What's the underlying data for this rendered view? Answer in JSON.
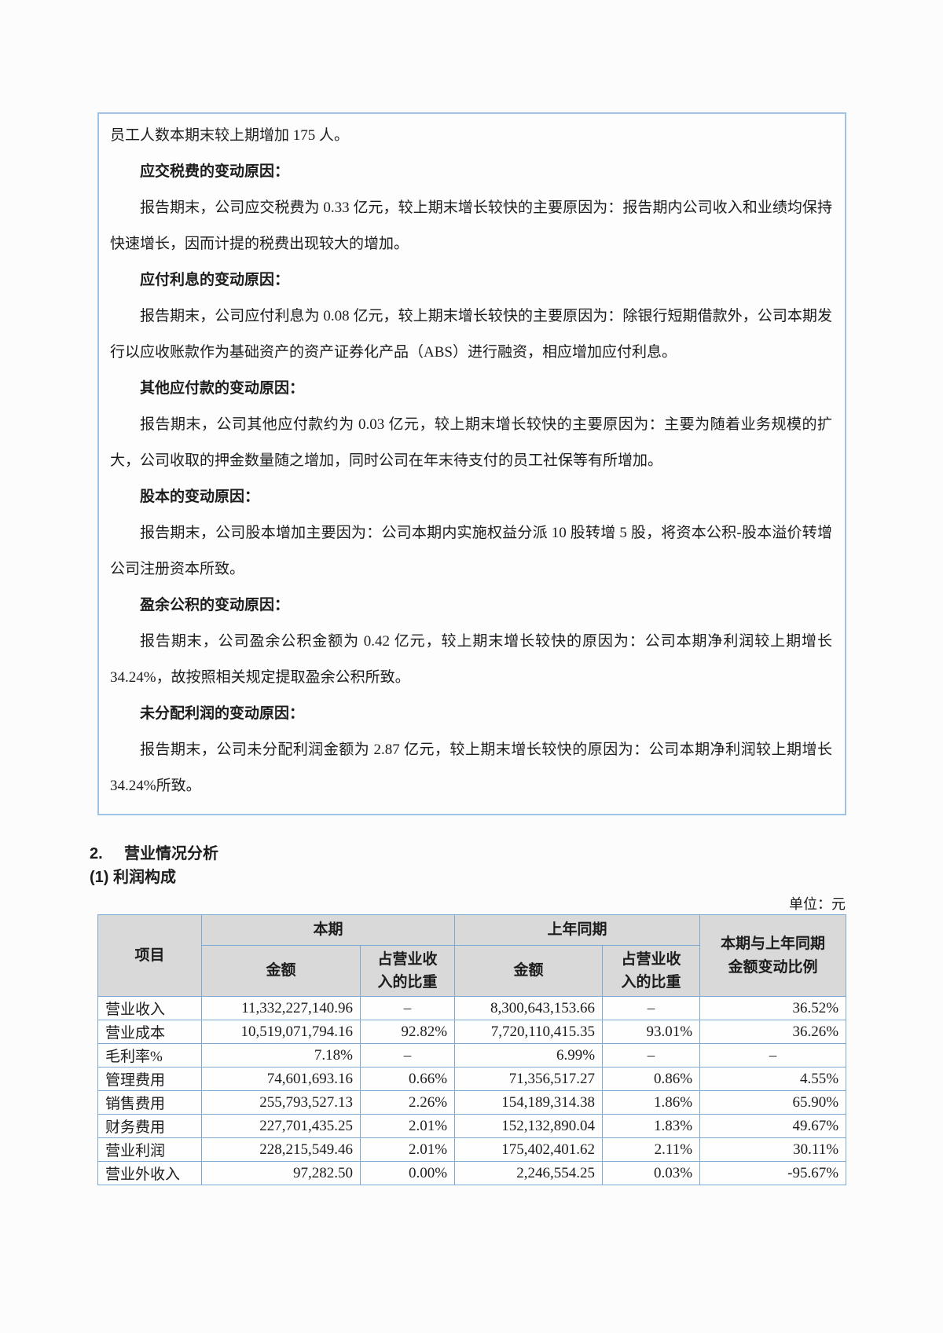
{
  "box": {
    "paragraphs": [
      {
        "style": "plain",
        "text": "员工人数本期末较上期增加 175 人。"
      },
      {
        "style": "heading",
        "text": "应交税费的变动原因："
      },
      {
        "style": "indent",
        "text": "报告期末，公司应交税费为 0.33 亿元，较上期末增长较快的主要原因为：报告期内公司收入和业绩均保持快速增长，因而计提的税费出现较大的增加。"
      },
      {
        "style": "heading",
        "text": "应付利息的变动原因："
      },
      {
        "style": "indent",
        "text": "报告期末，公司应付利息为 0.08 亿元，较上期末增长较快的主要原因为：除银行短期借款外，公司本期发行以应收账款作为基础资产的资产证券化产品（ABS）进行融资，相应增加应付利息。"
      },
      {
        "style": "heading",
        "text": "其他应付款的变动原因："
      },
      {
        "style": "indent",
        "text": "报告期末，公司其他应付款约为 0.03 亿元，较上期末增长较快的主要原因为：主要为随着业务规模的扩大，公司收取的押金数量随之增加，同时公司在年末待支付的员工社保等有所增加。"
      },
      {
        "style": "heading",
        "text": "股本的变动原因："
      },
      {
        "style": "indent",
        "text": "报告期末，公司股本增加主要因为：公司本期内实施权益分派 10 股转增 5 股，将资本公积-股本溢价转增公司注册资本所致。"
      },
      {
        "style": "heading",
        "text": "盈余公积的变动原因："
      },
      {
        "style": "indent",
        "text": "报告期末，公司盈余公积金额为 0.42 亿元，较上期末增长较快的原因为：公司本期净利润较上期增长 34.24%，故按照相关规定提取盈余公积所致。"
      },
      {
        "style": "heading",
        "text": "未分配利润的变动原因："
      },
      {
        "style": "indent",
        "text": "报告期末，公司未分配利润金额为 2.87 亿元，较上期末增长较快的原因为：公司本期净利润较上期增长 34.24%所致。"
      }
    ]
  },
  "section": {
    "number": "2.",
    "title": "营业情况分析",
    "subtitle": "(1) 利润构成",
    "unit_label": "单位：元"
  },
  "table": {
    "headers": {
      "item": "项目",
      "current": "本期",
      "prior": "上年同期",
      "amount": "金额",
      "ratio": "占营业收入的比重",
      "change": "本期与上年同期金额变动比例"
    },
    "rows": [
      {
        "item": "营业收入",
        "cur_amount": "11,332,227,140.96",
        "cur_ratio": "–",
        "prior_amount": "8,300,643,153.66",
        "prior_ratio": "–",
        "change": "36.52%"
      },
      {
        "item": "营业成本",
        "cur_amount": "10,519,071,794.16",
        "cur_ratio": "92.82%",
        "prior_amount": "7,720,110,415.35",
        "prior_ratio": "93.01%",
        "change": "36.26%"
      },
      {
        "item": "毛利率%",
        "cur_amount": "7.18%",
        "cur_ratio": "–",
        "prior_amount": "6.99%",
        "prior_ratio": "–",
        "change": "–"
      },
      {
        "item": "管理费用",
        "cur_amount": "74,601,693.16",
        "cur_ratio": "0.66%",
        "prior_amount": "71,356,517.27",
        "prior_ratio": "0.86%",
        "change": "4.55%"
      },
      {
        "item": "销售费用",
        "cur_amount": "255,793,527.13",
        "cur_ratio": "2.26%",
        "prior_amount": "154,189,314.38",
        "prior_ratio": "1.86%",
        "change": "65.90%"
      },
      {
        "item": "财务费用",
        "cur_amount": "227,701,435.25",
        "cur_ratio": "2.01%",
        "prior_amount": "152,132,890.04",
        "prior_ratio": "1.83%",
        "change": "49.67%"
      },
      {
        "item": "营业利润",
        "cur_amount": "228,215,549.46",
        "cur_ratio": "2.01%",
        "prior_amount": "175,402,401.62",
        "prior_ratio": "2.11%",
        "change": "30.11%"
      },
      {
        "item": "营业外收入",
        "cur_amount": "97,282.50",
        "cur_ratio": "0.00%",
        "prior_amount": "2,246,554.25",
        "prior_ratio": "0.03%",
        "change": "-95.67%"
      }
    ]
  },
  "colors": {
    "box_border": "#9dc3e6",
    "table_border": "#7fa8cf",
    "header_bg": "#d9d9d9"
  }
}
